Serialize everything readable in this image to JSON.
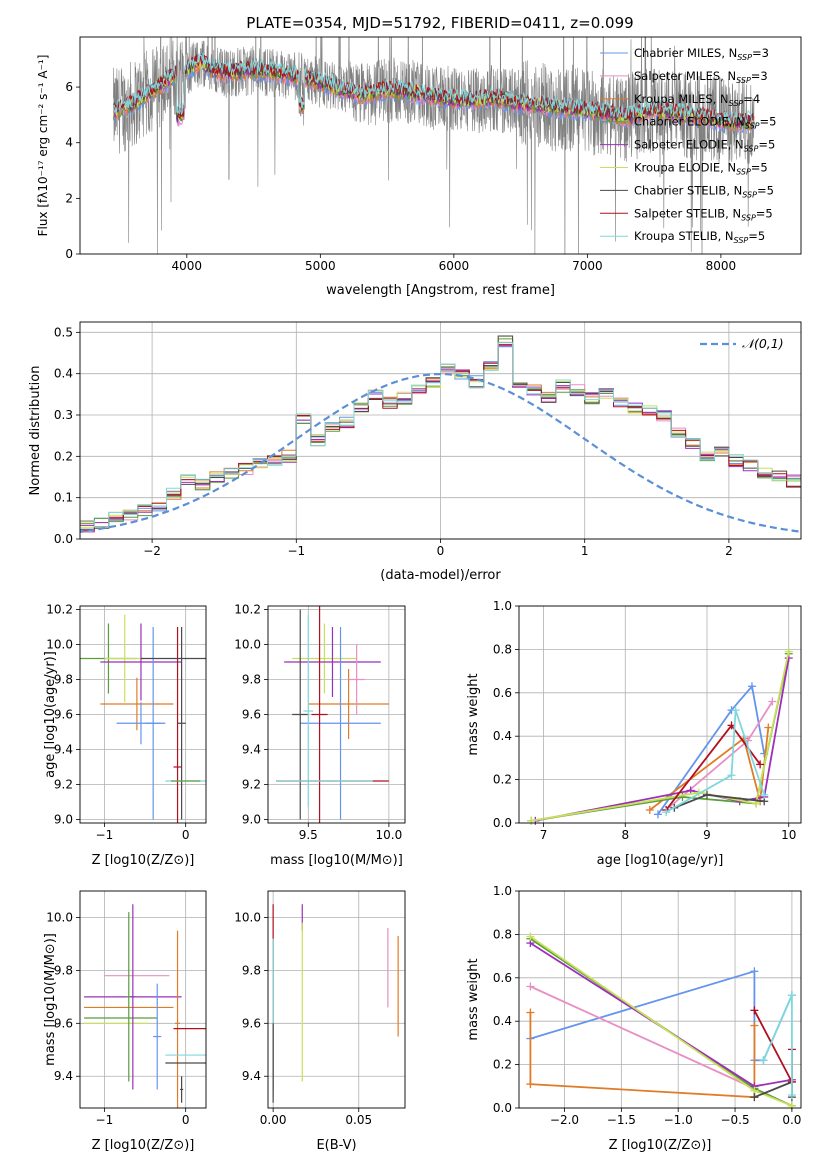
{
  "figure": {
    "title": "PLATE=0354, MJD=51792, FIBERID=0411, z=0.099"
  },
  "colors": {
    "spectrum": "#808080",
    "series": [
      "#6495ed",
      "#e88fc4",
      "#e07b28",
      "#5a9e3c",
      "#9b30b8",
      "#c8e05a",
      "#4a4a4a",
      "#b01020",
      "#7fd8dc"
    ],
    "gaussian": "#5b8fd6"
  },
  "chart_data": [
    {
      "type": "line",
      "id": "spectrum",
      "title": "PLATE=0354, MJD=51792, FIBERID=0411, z=0.099",
      "xlabel": "wavelength [Angstrom, rest frame]",
      "ylabel": "Flux [fλ10⁻¹⁷ erg cm⁻² s⁻¹ A⁻¹]",
      "xlim": [
        3200,
        8600
      ],
      "ylim": [
        0,
        7.8
      ],
      "xticks": [
        4000,
        5000,
        6000,
        7000,
        8000
      ],
      "yticks": [
        0,
        2,
        4,
        6
      ],
      "grid": false,
      "legend_position": "top-right",
      "continuum_knots": {
        "x": [
          3450,
          3600,
          3750,
          3900,
          4000,
          4100,
          4200,
          4300,
          4500,
          4700,
          4900,
          5100,
          5300,
          5500,
          5700,
          5900,
          6100,
          6300,
          6500,
          6700,
          6900,
          7100,
          7300,
          7500,
          7700,
          7900,
          8100,
          8250
        ],
        "y": [
          5.1,
          5.4,
          5.9,
          6.4,
          6.6,
          6.9,
          6.6,
          6.5,
          6.6,
          6.5,
          6.3,
          6.0,
          5.7,
          5.9,
          5.8,
          5.6,
          5.5,
          5.6,
          5.4,
          5.3,
          5.2,
          5.1,
          4.9,
          5.2,
          5.0,
          4.9,
          4.7,
          4.8
        ]
      },
      "series": [
        {
          "name": "Chabrier MILES, N_SSP=3",
          "nssp": "3"
        },
        {
          "name": "Salpeter MILES, N_SSP=3",
          "nssp": "3"
        },
        {
          "name": "Kroupa MILES, N_SSP=4",
          "nssp": "4"
        },
        {
          "name": "Chabrier ELODIE, N_SSP=5",
          "nssp": "5"
        },
        {
          "name": "Salpeter ELODIE, N_SSP=5",
          "nssp": "5"
        },
        {
          "name": "Kroupa ELODIE, N_SSP=5",
          "nssp": "5"
        },
        {
          "name": "Chabrier STELIB, N_SSP=5",
          "nssp": "5"
        },
        {
          "name": "Salpeter STELIB, N_SSP=5",
          "nssp": "5"
        },
        {
          "name": "Kroupa STELIB, N_SSP=5",
          "nssp": "5"
        }
      ],
      "legend_labels": [
        {
          "base": "Chabrier MILES, N",
          "sub": "SSP",
          "tail": "=3"
        },
        {
          "base": "Salpeter MILES, N",
          "sub": "SSP",
          "tail": "=3"
        },
        {
          "base": "Kroupa MILES, N",
          "sub": "SSP",
          "tail": "=4"
        },
        {
          "base": "Chabrier ELODIE, N",
          "sub": "SSP",
          "tail": "=5"
        },
        {
          "base": "Salpeter ELODIE, N",
          "sub": "SSP",
          "tail": "=5"
        },
        {
          "base": "Kroupa ELODIE, N",
          "sub": "SSP",
          "tail": "=5"
        },
        {
          "base": "Chabrier STELIB, N",
          "sub": "SSP",
          "tail": "=5"
        },
        {
          "base": "Salpeter STELIB, N",
          "sub": "SSP",
          "tail": "=5"
        },
        {
          "base": "Kroupa STELIB, N",
          "sub": "SSP",
          "tail": "=5"
        }
      ]
    },
    {
      "type": "line",
      "id": "residuals",
      "xlabel": "(data-model)/error",
      "ylabel": "Normed distribution",
      "xlim": [
        -2.5,
        2.5
      ],
      "ylim": [
        0,
        0.525
      ],
      "xticks": [
        -2,
        -1,
        0,
        1,
        2
      ],
      "xtick_labels": [
        "−2",
        "−1",
        "0",
        "1",
        "2"
      ],
      "yticks": [
        0.0,
        0.1,
        0.2,
        0.3,
        0.4,
        0.5
      ],
      "ytick_labels": [
        "0.0",
        "0.1",
        "0.2",
        "0.3",
        "0.4",
        "0.5"
      ],
      "grid": true,
      "legend_position": "top-right",
      "gaussian": {
        "name": "𝒩(0,1)",
        "mean": 0,
        "sigma": 1
      },
      "bin_width": 0.1,
      "histogram": [
        0.02,
        0.03,
        0.04,
        0.05,
        0.06,
        0.07,
        0.08,
        0.11,
        0.14,
        0.13,
        0.15,
        0.16,
        0.17,
        0.18,
        0.19,
        0.2,
        0.29,
        0.24,
        0.27,
        0.28,
        0.32,
        0.35,
        0.33,
        0.34,
        0.36,
        0.38,
        0.41,
        0.4,
        0.38,
        0.42,
        0.48,
        0.37,
        0.36,
        0.34,
        0.37,
        0.36,
        0.34,
        0.35,
        0.33,
        0.32,
        0.31,
        0.3,
        0.26,
        0.23,
        0.2,
        0.21,
        0.19,
        0.18,
        0.16,
        0.15,
        0.14,
        0.13,
        0.12,
        0.11,
        0.1,
        0.08,
        0.07,
        0.06,
        0.07,
        0.05,
        0.05,
        0.04,
        0.05,
        0.04,
        0.04,
        0.05,
        0.04,
        0.03,
        0.04,
        0.03,
        0.03,
        0.03
      ]
    },
    {
      "type": "scatter",
      "id": "age-vs-z",
      "xlabel": "Z [log10(Z/Z⊙)]",
      "ylabel": "age [log10(age/yr)]",
      "xlim": [
        -1.3,
        0.25
      ],
      "ylim": [
        8.98,
        10.22
      ],
      "xticks": [
        -1,
        0
      ],
      "xtick_labels": [
        "−1",
        "0"
      ],
      "yticks": [
        9.0,
        9.2,
        9.4,
        9.6,
        9.8,
        10.0,
        10.2
      ],
      "grid": true,
      "points": [
        {
          "x": -0.95,
          "y": 9.92,
          "xerr": 0.35,
          "yerr": 0.2,
          "c": 3
        },
        {
          "x": -0.75,
          "y": 9.92,
          "xerr": 0.25,
          "yerr": 0.25,
          "c": 5
        },
        {
          "x": -0.55,
          "y": 9.9,
          "xerr": 0.5,
          "yerr": 0.22,
          "c": 4
        },
        {
          "x": -0.6,
          "y": 9.66,
          "xerr": 0.45,
          "yerr": 0.15,
          "c": 2
        },
        {
          "x": -0.55,
          "y": 9.55,
          "xerr": 0.3,
          "yerr": 0.12,
          "c": 0
        },
        {
          "x": -0.4,
          "y": 9.55,
          "xerr": 0.1,
          "yerr": 0.55,
          "c": 0
        },
        {
          "x": -0.1,
          "y": 9.3,
          "xerr": 0.05,
          "yerr": 0.8,
          "c": 7
        },
        {
          "x": -0.05,
          "y": 9.55,
          "xerr": 0.05,
          "yerr": 0.55,
          "c": 6
        },
        {
          "x": 0.0,
          "y": 9.22,
          "xerr": 0.25,
          "yerr": 0.0,
          "c": 8
        },
        {
          "x": 0.0,
          "y": 9.22,
          "xerr": 0.18,
          "yerr": 0.0,
          "c": 3
        },
        {
          "x": -0.15,
          "y": 9.92,
          "xerr": 0.4,
          "yerr": 0.0,
          "c": 6
        }
      ]
    },
    {
      "type": "scatter",
      "id": "age-vs-mass",
      "xlabel": "mass [log10(M/M⊙)]",
      "ylabel": "",
      "xlim": [
        9.25,
        10.1
      ],
      "ylim": [
        8.98,
        10.22
      ],
      "xticks": [
        9.5,
        10.0
      ],
      "xtick_labels": [
        "9.5",
        "10.0"
      ],
      "yticks": [
        9.0,
        9.2,
        9.4,
        9.6,
        9.8,
        10.0,
        10.2
      ],
      "grid": true,
      "points": [
        {
          "x": 9.6,
          "y": 9.92,
          "xerr": 0.2,
          "yerr": 0.2,
          "c": 5
        },
        {
          "x": 9.65,
          "y": 9.9,
          "xerr": 0.3,
          "yerr": 0.2,
          "c": 4
        },
        {
          "x": 9.75,
          "y": 9.66,
          "xerr": 0.25,
          "yerr": 0.2,
          "c": 2
        },
        {
          "x": 9.7,
          "y": 9.55,
          "xerr": 0.25,
          "yerr": 0.55,
          "c": 0
        },
        {
          "x": 9.8,
          "y": 9.8,
          "xerr": 0.05,
          "yerr": 0.2,
          "c": 1
        },
        {
          "x": 9.45,
          "y": 9.6,
          "xerr": 0.05,
          "yerr": 0.6,
          "c": 6
        },
        {
          "x": 9.57,
          "y": 9.6,
          "xerr": 0.05,
          "yerr": 0.62,
          "c": 7
        },
        {
          "x": 9.5,
          "y": 9.62,
          "xerr": 0.03,
          "yerr": 0.55,
          "c": 8
        },
        {
          "x": 9.65,
          "y": 9.22,
          "xerr": 0.35,
          "yerr": 0.0,
          "c": 7
        },
        {
          "x": 9.6,
          "y": 9.22,
          "xerr": 0.3,
          "yerr": 0.0,
          "c": 8
        }
      ]
    },
    {
      "type": "line",
      "id": "massweight-vs-age",
      "xlabel": "age [log10(age/yr)]",
      "ylabel": "mass weight",
      "xlim": [
        6.7,
        10.15
      ],
      "ylim": [
        0,
        1.0
      ],
      "xticks": [
        7,
        8,
        9,
        10
      ],
      "yticks": [
        0.0,
        0.2,
        0.4,
        0.6,
        0.8,
        1.0
      ],
      "grid": true,
      "series": [
        {
          "c": 0,
          "x": [
            8.4,
            9.3,
            9.55,
            9.7
          ],
          "y": [
            0.04,
            0.52,
            0.63,
            0.32
          ]
        },
        {
          "c": 1,
          "x": [
            8.5,
            9.5,
            9.8
          ],
          "y": [
            0.06,
            0.38,
            0.56
          ]
        },
        {
          "c": 2,
          "x": [
            8.3,
            9.45,
            9.65,
            9.75
          ],
          "y": [
            0.06,
            0.39,
            0.1,
            0.44
          ]
        },
        {
          "c": 3,
          "x": [
            6.85,
            8.7,
            9.6,
            10.0
          ],
          "y": [
            0.01,
            0.12,
            0.09,
            0.78
          ]
        },
        {
          "c": 4,
          "x": [
            6.9,
            8.8,
            9.4,
            9.7,
            10.0
          ],
          "y": [
            0.01,
            0.15,
            0.1,
            0.12,
            0.76
          ]
        },
        {
          "c": 5,
          "x": [
            6.85,
            8.9,
            9.6,
            10.0
          ],
          "y": [
            0.01,
            0.14,
            0.09,
            0.79
          ]
        },
        {
          "c": 6,
          "x": [
            8.6,
            9.0,
            9.7
          ],
          "y": [
            0.07,
            0.13,
            0.1
          ]
        },
        {
          "c": 7,
          "x": [
            8.5,
            9.3,
            9.65
          ],
          "y": [
            0.06,
            0.45,
            0.27
          ]
        },
        {
          "c": 8,
          "x": [
            8.5,
            9.3,
            9.35,
            9.7
          ],
          "y": [
            0.05,
            0.22,
            0.52,
            0.13
          ]
        }
      ]
    },
    {
      "type": "scatter",
      "id": "mass-vs-z",
      "xlabel": "Z [log10(Z/Z⊙)]",
      "ylabel": "mass [log10(M/M⊙)]",
      "xlim": [
        -1.3,
        0.25
      ],
      "ylim": [
        9.28,
        10.1
      ],
      "xticks": [
        -1,
        0
      ],
      "xtick_labels": [
        "−1",
        "0"
      ],
      "yticks": [
        9.4,
        9.6,
        9.8,
        10.0
      ],
      "grid": true,
      "points": [
        {
          "x": -0.6,
          "y": 9.78,
          "xerr": 0.4,
          "yerr": 0.0,
          "c": 1
        },
        {
          "x": -0.7,
          "y": 9.66,
          "xerr": 0.55,
          "yerr": 0.0,
          "c": 2
        },
        {
          "x": -0.65,
          "y": 9.7,
          "xerr": 0.6,
          "yerr": 0.0,
          "c": 4
        },
        {
          "x": -0.8,
          "y": 9.62,
          "xerr": 0.45,
          "yerr": 0.0,
          "c": 3
        },
        {
          "x": -0.85,
          "y": 9.6,
          "xerr": 0.4,
          "yerr": 0.0,
          "c": 5
        },
        {
          "x": -0.35,
          "y": 9.55,
          "xerr": 0.05,
          "yerr": 0.2,
          "c": 0
        },
        {
          "x": -0.7,
          "y": 9.7,
          "xerr": 0.03,
          "yerr": 0.32,
          "c": 3
        },
        {
          "x": -0.65,
          "y": 9.7,
          "xerr": 0.03,
          "yerr": 0.35,
          "c": 4
        },
        {
          "x": -0.1,
          "y": 9.6,
          "xerr": 0.03,
          "yerr": 0.35,
          "c": 2
        },
        {
          "x": 0.05,
          "y": 9.58,
          "xerr": 0.2,
          "yerr": 0.0,
          "c": 7
        },
        {
          "x": 0.0,
          "y": 9.48,
          "xerr": 0.25,
          "yerr": 0.0,
          "c": 8
        },
        {
          "x": 0.0,
          "y": 9.45,
          "xerr": 0.25,
          "yerr": 0.0,
          "c": 6
        },
        {
          "x": -0.05,
          "y": 9.35,
          "xerr": 0.02,
          "yerr": 0.05,
          "c": 6
        }
      ]
    },
    {
      "type": "scatter",
      "id": "mass-vs-ebv",
      "xlabel": "E(B-V)",
      "ylabel": "",
      "xlim": [
        -0.003,
        0.077
      ],
      "ylim": [
        9.28,
        10.1
      ],
      "xticks": [
        0.0,
        0.05
      ],
      "xtick_labels": [
        "0.00",
        "0.05"
      ],
      "yticks": [
        9.4,
        9.6,
        9.8,
        10.0
      ],
      "grid": true,
      "points": [
        {
          "x": 0.0,
          "y": 9.7,
          "xerr": 0.0,
          "yerr": 0.35,
          "c": 7
        },
        {
          "x": 0.0,
          "y": 9.62,
          "xerr": 0.0,
          "yerr": 0.3,
          "c": 8
        },
        {
          "x": 0.0,
          "y": 9.45,
          "xerr": 0.0,
          "yerr": 0.15,
          "c": 6
        },
        {
          "x": 0.017,
          "y": 10.0,
          "xerr": 0.0,
          "yerr": 0.05,
          "c": 4
        },
        {
          "x": 0.017,
          "y": 9.68,
          "xerr": 0.0,
          "yerr": 0.3,
          "c": 5
        },
        {
          "x": 0.067,
          "y": 9.81,
          "xerr": 0.0,
          "yerr": 0.15,
          "c": 1
        },
        {
          "x": 0.073,
          "y": 9.74,
          "xerr": 0.0,
          "yerr": 0.19,
          "c": 2
        }
      ]
    },
    {
      "type": "line",
      "id": "massweight-vs-z",
      "xlabel": "Z [log10(Z/Z⊙)]",
      "ylabel": "mass weight",
      "xlim": [
        -2.4,
        0.08
      ],
      "ylim": [
        0,
        1.0
      ],
      "xticks": [
        -2.0,
        -1.5,
        -1.0,
        -0.5,
        0.0
      ],
      "xtick_labels": [
        "−2.0",
        "−1.5",
        "−1.0",
        "−0.5",
        "0.0"
      ],
      "yticks": [
        0.0,
        0.2,
        0.4,
        0.6,
        0.8,
        1.0
      ],
      "grid": true,
      "series": [
        {
          "c": 0,
          "x": [
            -2.3,
            -0.33,
            -0.33,
            -0.25,
            0.0
          ],
          "y": [
            0.32,
            0.63,
            0.22,
            0.22,
            0.52
          ]
        },
        {
          "c": 1,
          "x": [
            -2.3,
            -0.33,
            0.0
          ],
          "y": [
            0.56,
            0.09,
            0.01
          ]
        },
        {
          "c": 2,
          "x": [
            -2.3,
            -2.3,
            -0.33,
            -0.33
          ],
          "y": [
            0.44,
            0.11,
            0.05,
            0.38
          ]
        },
        {
          "c": 3,
          "x": [
            -2.3,
            -0.33,
            0.0
          ],
          "y": [
            0.78,
            0.09,
            0.01
          ]
        },
        {
          "c": 4,
          "x": [
            -2.3,
            -0.33,
            0.0
          ],
          "y": [
            0.76,
            0.1,
            0.13
          ]
        },
        {
          "c": 5,
          "x": [
            -2.3,
            -0.33,
            0.0
          ],
          "y": [
            0.79,
            0.08,
            0.01
          ]
        },
        {
          "c": 6,
          "x": [
            -0.33,
            0.0,
            0.0
          ],
          "y": [
            0.05,
            0.12,
            0.05
          ]
        },
        {
          "c": 7,
          "x": [
            -0.33,
            0.0,
            0.0
          ],
          "y": [
            0.45,
            0.12,
            0.27
          ]
        },
        {
          "c": 8,
          "x": [
            -0.25,
            0.0,
            0.0
          ],
          "y": [
            0.22,
            0.52,
            0.06
          ]
        }
      ]
    }
  ]
}
